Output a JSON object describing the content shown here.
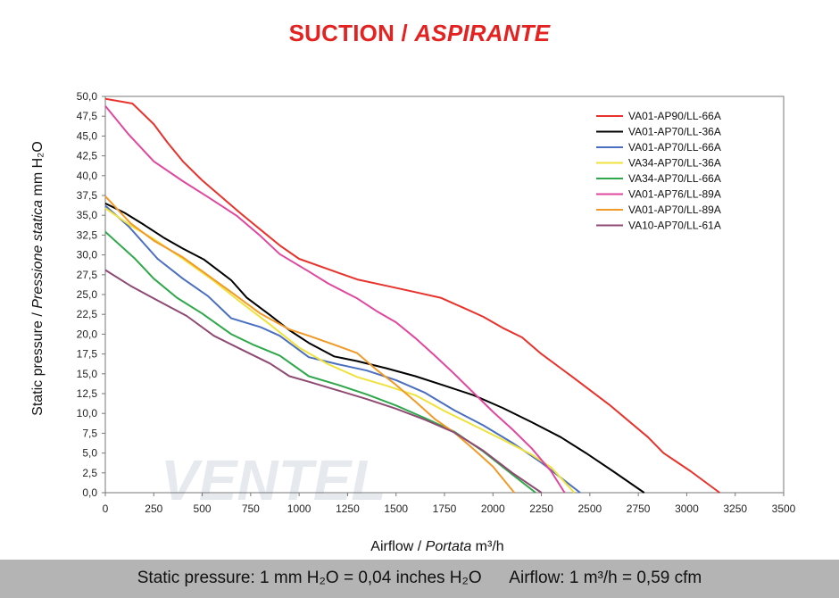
{
  "title": {
    "main": "SUCTION / ",
    "italic": "ASPIRANTE"
  },
  "watermark": "VENTEL",
  "footer": {
    "pressure": "Static pressure: 1 mm H₂O = 0,04 inches H₂O",
    "airflow": "Airflow: 1 m³/h = 0,59 cfm"
  },
  "chart_data": {
    "type": "line",
    "xlabel": {
      "main": "Airflow / ",
      "italic": "Portata",
      "unit": "  m³/h"
    },
    "ylabel": {
      "main": "Static pressure / ",
      "italic": "Pressione statica",
      "unit": "  mm  H₂O"
    },
    "xlim": [
      0,
      3500
    ],
    "ylim": [
      0,
      50
    ],
    "x_ticks": [
      "0",
      "250",
      "500",
      "750",
      "1000",
      "1250",
      "1500",
      "1750",
      "2000",
      "2250",
      "2500",
      "2750",
      "3000",
      "3250",
      "3500"
    ],
    "y_ticks": [
      "0,0",
      "2,5",
      "5,0",
      "7,5",
      "10,0",
      "12,5",
      "15,0",
      "17,5",
      "20,0",
      "22,5",
      "25,0",
      "27,5",
      "30,0",
      "32,5",
      "35,0",
      "37,5",
      "40,0",
      "42,5",
      "45,0",
      "47,5",
      "50,0"
    ],
    "grid": false,
    "legend_position": "top-right",
    "series": [
      {
        "name": "VA01-AP90/LL-66A",
        "color": "#e8322b",
        "points": [
          [
            0,
            49.7
          ],
          [
            140,
            49.1
          ],
          [
            250,
            46.5
          ],
          [
            320,
            44.2
          ],
          [
            400,
            41.8
          ],
          [
            500,
            39.4
          ],
          [
            600,
            37.3
          ],
          [
            700,
            35.2
          ],
          [
            800,
            33.2
          ],
          [
            900,
            31.2
          ],
          [
            1000,
            29.5
          ],
          [
            1150,
            28.2
          ],
          [
            1300,
            26.9
          ],
          [
            1450,
            26.1
          ],
          [
            1600,
            25.3
          ],
          [
            1730,
            24.6
          ],
          [
            1850,
            23.3
          ],
          [
            1950,
            22.2
          ],
          [
            2050,
            20.8
          ],
          [
            2150,
            19.6
          ],
          [
            2250,
            17.5
          ],
          [
            2400,
            14.8
          ],
          [
            2600,
            11.1
          ],
          [
            2800,
            7.0
          ],
          [
            2880,
            5.0
          ],
          [
            3020,
            2.7
          ],
          [
            3170,
            0.0
          ]
        ]
      },
      {
        "name": "VA01-AP70/LL-36A",
        "color": "#000000",
        "points": [
          [
            0,
            36.5
          ],
          [
            100,
            35.3
          ],
          [
            200,
            33.8
          ],
          [
            300,
            32.2
          ],
          [
            400,
            30.8
          ],
          [
            510,
            29.4
          ],
          [
            650,
            26.8
          ],
          [
            730,
            24.6
          ],
          [
            850,
            22.4
          ],
          [
            950,
            20.5
          ],
          [
            1050,
            18.9
          ],
          [
            1180,
            17.2
          ],
          [
            1300,
            16.6
          ],
          [
            1450,
            15.7
          ],
          [
            1600,
            14.7
          ],
          [
            1750,
            13.5
          ],
          [
            1900,
            12.3
          ],
          [
            2050,
            10.7
          ],
          [
            2200,
            8.9
          ],
          [
            2350,
            7.0
          ],
          [
            2480,
            5.0
          ],
          [
            2620,
            2.7
          ],
          [
            2780,
            0.0
          ]
        ]
      },
      {
        "name": "VA01-AP70/LL-66A",
        "color": "#4a6fc1",
        "points": [
          [
            0,
            36.2
          ],
          [
            120,
            33.6
          ],
          [
            270,
            29.5
          ],
          [
            400,
            27.0
          ],
          [
            530,
            24.8
          ],
          [
            650,
            22.0
          ],
          [
            800,
            20.9
          ],
          [
            900,
            19.8
          ],
          [
            1050,
            17.1
          ],
          [
            1200,
            16.2
          ],
          [
            1350,
            15.4
          ],
          [
            1500,
            14.2
          ],
          [
            1650,
            12.6
          ],
          [
            1800,
            10.4
          ],
          [
            1950,
            8.5
          ],
          [
            2100,
            6.3
          ],
          [
            2250,
            3.8
          ],
          [
            2450,
            0.0
          ]
        ]
      },
      {
        "name": "VA34-AP70/LL-36A",
        "color": "#f0e23c",
        "points": [
          [
            0,
            35.9
          ],
          [
            130,
            33.7
          ],
          [
            250,
            32.0
          ],
          [
            400,
            29.5
          ],
          [
            550,
            26.9
          ],
          [
            700,
            24.0
          ],
          [
            850,
            21.2
          ],
          [
            1000,
            18.3
          ],
          [
            1150,
            16.2
          ],
          [
            1300,
            14.6
          ],
          [
            1450,
            13.5
          ],
          [
            1600,
            12.3
          ],
          [
            1750,
            10.3
          ],
          [
            1900,
            8.5
          ],
          [
            2050,
            6.7
          ],
          [
            2200,
            4.8
          ],
          [
            2300,
            3.2
          ],
          [
            2420,
            0.0
          ]
        ]
      },
      {
        "name": "VA34-AP70/LL-66A",
        "color": "#2ea84a",
        "points": [
          [
            0,
            32.9
          ],
          [
            150,
            29.6
          ],
          [
            250,
            27.0
          ],
          [
            370,
            24.6
          ],
          [
            500,
            22.6
          ],
          [
            650,
            20.0
          ],
          [
            760,
            18.7
          ],
          [
            900,
            17.3
          ],
          [
            1050,
            14.7
          ],
          [
            1200,
            13.6
          ],
          [
            1350,
            12.4
          ],
          [
            1500,
            11.0
          ],
          [
            1650,
            9.4
          ],
          [
            1800,
            7.7
          ],
          [
            1950,
            5.2
          ],
          [
            2100,
            2.3
          ],
          [
            2220,
            0.0
          ]
        ]
      },
      {
        "name": "VA01-AP76/LL-89A",
        "color": "#e0479e",
        "points": [
          [
            0,
            48.8
          ],
          [
            120,
            45.2
          ],
          [
            250,
            41.8
          ],
          [
            400,
            39.3
          ],
          [
            530,
            37.3
          ],
          [
            680,
            34.9
          ],
          [
            800,
            32.4
          ],
          [
            900,
            30.1
          ],
          [
            1050,
            27.9
          ],
          [
            1150,
            26.4
          ],
          [
            1300,
            24.5
          ],
          [
            1400,
            22.9
          ],
          [
            1500,
            21.5
          ],
          [
            1600,
            19.5
          ],
          [
            1700,
            17.3
          ],
          [
            1800,
            15.0
          ],
          [
            1900,
            12.6
          ],
          [
            2000,
            10.2
          ],
          [
            2100,
            8.0
          ],
          [
            2200,
            5.6
          ],
          [
            2300,
            2.7
          ],
          [
            2370,
            0.0
          ]
        ]
      },
      {
        "name": "VA01-AP70/LL-89A",
        "color": "#f19a28",
        "points": [
          [
            0,
            37.4
          ],
          [
            130,
            34.0
          ],
          [
            250,
            31.8
          ],
          [
            400,
            29.7
          ],
          [
            520,
            27.6
          ],
          [
            650,
            25.3
          ],
          [
            800,
            22.6
          ],
          [
            950,
            20.6
          ],
          [
            1050,
            19.8
          ],
          [
            1200,
            18.5
          ],
          [
            1300,
            17.6
          ],
          [
            1400,
            15.5
          ],
          [
            1500,
            13.6
          ],
          [
            1600,
            11.5
          ],
          [
            1700,
            9.3
          ],
          [
            1800,
            7.6
          ],
          [
            1900,
            5.5
          ],
          [
            2000,
            3.3
          ],
          [
            2110,
            0.0
          ]
        ]
      },
      {
        "name": "VA10-AP70/LL-61A",
        "color": "#8f4a73",
        "points": [
          [
            0,
            28.1
          ],
          [
            130,
            26.1
          ],
          [
            250,
            24.5
          ],
          [
            420,
            22.3
          ],
          [
            560,
            19.8
          ],
          [
            700,
            18.1
          ],
          [
            850,
            16.3
          ],
          [
            950,
            14.7
          ],
          [
            1050,
            14.0
          ],
          [
            1200,
            12.9
          ],
          [
            1350,
            11.8
          ],
          [
            1500,
            10.6
          ],
          [
            1650,
            9.2
          ],
          [
            1800,
            7.6
          ],
          [
            1950,
            5.3
          ],
          [
            2100,
            2.5
          ],
          [
            2250,
            0.0
          ]
        ]
      }
    ]
  }
}
